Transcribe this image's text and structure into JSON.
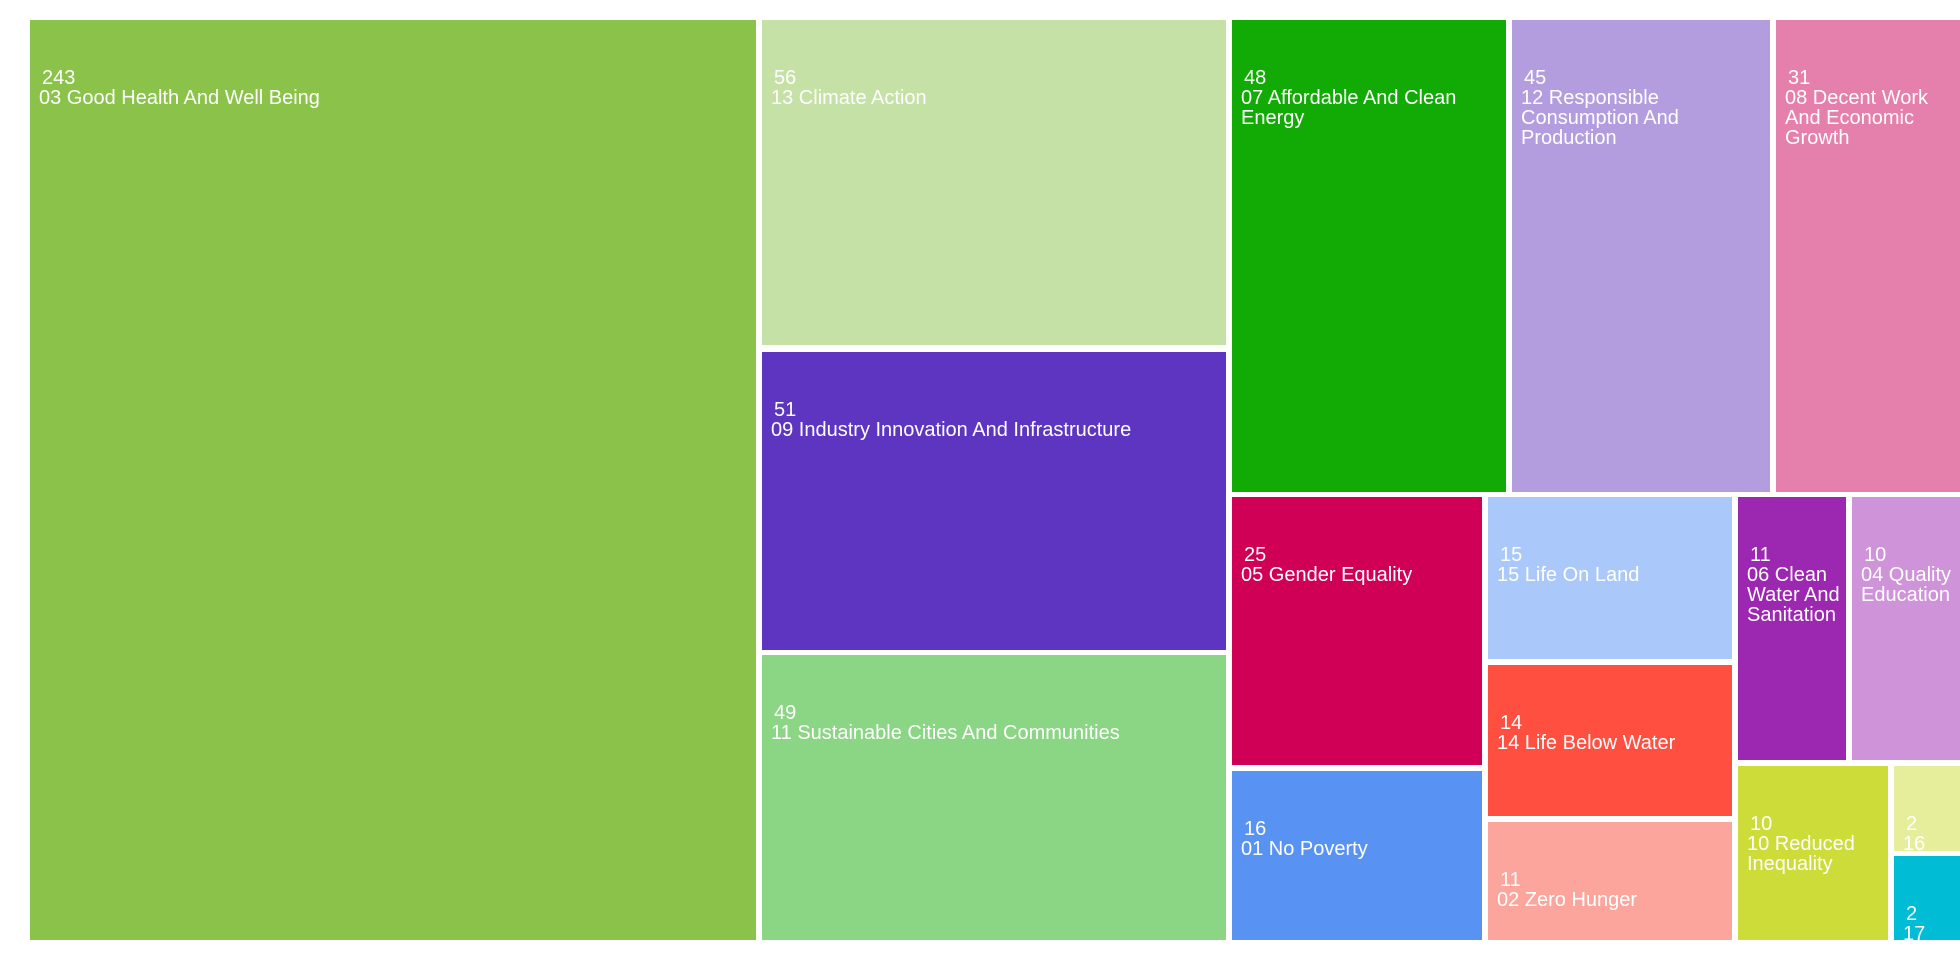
{
  "chart_data": {
    "type": "treemap",
    "items": [
      {
        "label": "03 Good Health And Well Being",
        "value": 243,
        "color": "#8bc34a"
      },
      {
        "label": "13 Climate Action",
        "value": 56,
        "color": "#c5e1a5"
      },
      {
        "label": "09 Industry Innovation And Infrastructure",
        "value": 51,
        "color": "#5e35c1"
      },
      {
        "label": "11 Sustainable Cities And Communities",
        "value": 49,
        "color": "#8bd685"
      },
      {
        "label": "07 Affordable And Clean Energy",
        "value": 48,
        "color": "#12aa05"
      },
      {
        "label": "12 Responsible Consumption And Production",
        "value": 45,
        "color": "#b39ddf"
      },
      {
        "label": "08 Decent Work And Economic Growth",
        "value": 31,
        "color": "#e57fab"
      },
      {
        "label": "05 Gender Equality",
        "value": 25,
        "color": "#d00057"
      },
      {
        "label": "01 No Poverty",
        "value": 16,
        "color": "#5893f4"
      },
      {
        "label": "15 Life On Land",
        "value": 15,
        "color": "#aac8f9"
      },
      {
        "label": "14 Life Below Water",
        "value": 14,
        "color": "#ff4f40"
      },
      {
        "label": "02 Zero Hunger",
        "value": 11,
        "color": "#fca59c"
      },
      {
        "label": "06 Clean Water And Sanitation",
        "value": 11,
        "color": "#9c27b0"
      },
      {
        "label": "04 Quality Education",
        "value": 10,
        "color": "#ce93d8"
      },
      {
        "label": "10 Reduced Inequality",
        "value": 10,
        "color": "#cddc39"
      },
      {
        "label": "16",
        "value": 2,
        "color": "#e6ee9c"
      },
      {
        "label": "17",
        "value": 2,
        "color": "#00bcd4"
      }
    ]
  }
}
